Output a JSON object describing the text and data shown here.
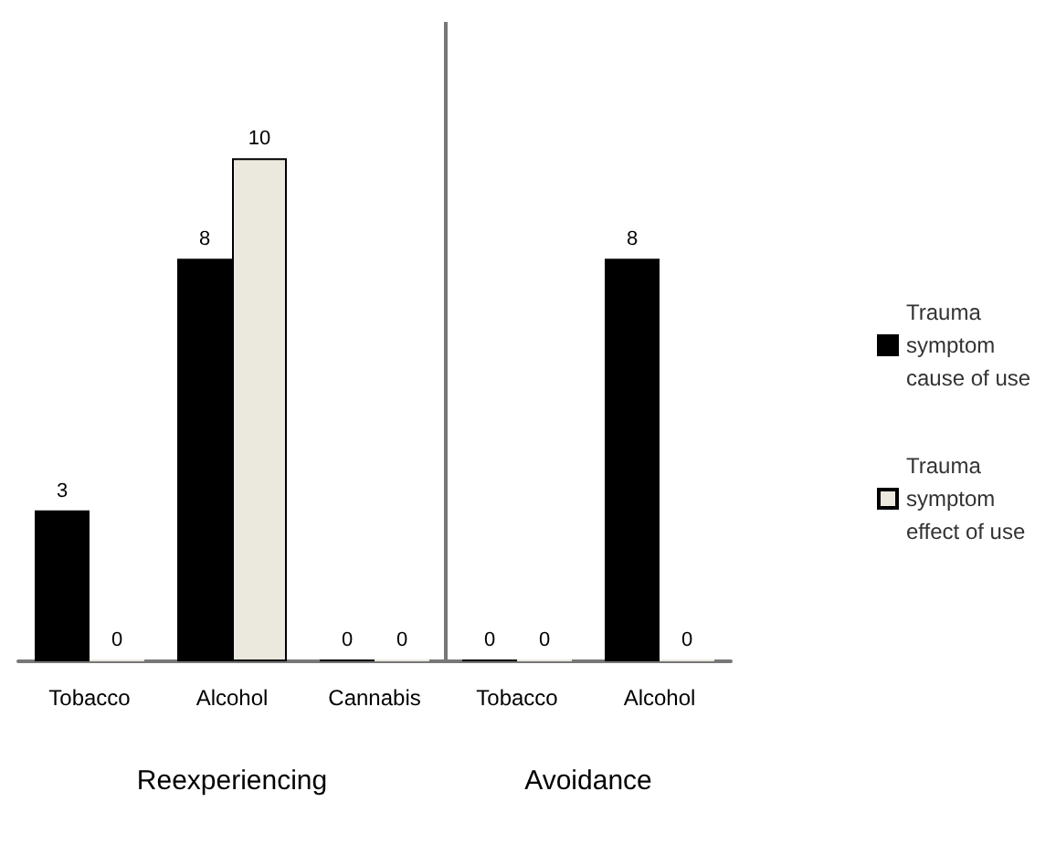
{
  "chart_data": {
    "type": "bar",
    "categories": [
      "Tobacco",
      "Alcohol",
      "Cannabis",
      "Tobacco",
      "Alcohol"
    ],
    "series": [
      {
        "name": "Trauma symptom cause of use",
        "color": "#000000",
        "values": [
          3,
          8,
          0,
          0,
          8
        ]
      },
      {
        "name": "Trauma symptom effect of use",
        "color": "#ebe8de",
        "values": [
          0,
          10,
          0,
          0,
          0
        ]
      }
    ],
    "data_labels": true,
    "legend": "right",
    "annotations": [
      "Reexperiencing",
      "Avoidance"
    ]
  }
}
